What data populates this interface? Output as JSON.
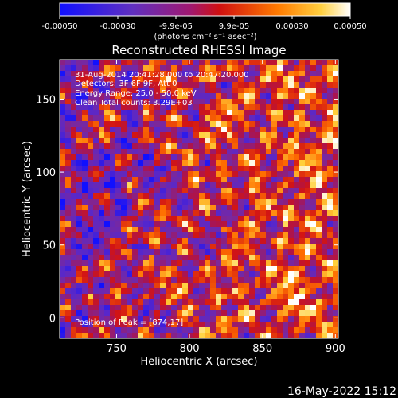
{
  "chart_data": {
    "type": "heatmap",
    "title": "Reconstructed RHESSI Image",
    "xlabel": "Heliocentric X (arcsec)",
    "ylabel": "Heliocentric Y (arcsec)",
    "xlim": [
      711,
      902
    ],
    "ylim": [
      -14,
      177
    ],
    "xticks": [
      750,
      800,
      850,
      900
    ],
    "yticks": [
      0,
      50,
      100,
      150
    ],
    "colormap": "hot-red-purple-blue",
    "colorbar": {
      "range": [
        -0.0005,
        0.0005
      ],
      "ticks": [
        "-0.00050",
        "-0.00030",
        "-9.9e-05",
        "9.9e-05",
        "0.00030",
        "0.00050"
      ],
      "units": "(photons cm⁻² s⁻¹ asec⁻²)"
    },
    "annotations": [
      "31-Aug-2014 20:41:28.000 to 20:47:20.000",
      "Detectors: 3F 6F 9F, Att 0",
      "Energy Range: 25.0 - 50.0 keV",
      "Clean     Total counts: 3.29E+03"
    ],
    "peak_label": "Position of Peak = [874,17]"
  },
  "footer": {
    "date": "16-May-2022 15:12"
  },
  "colors": {
    "background": "#000000",
    "text": "#ffffff"
  }
}
